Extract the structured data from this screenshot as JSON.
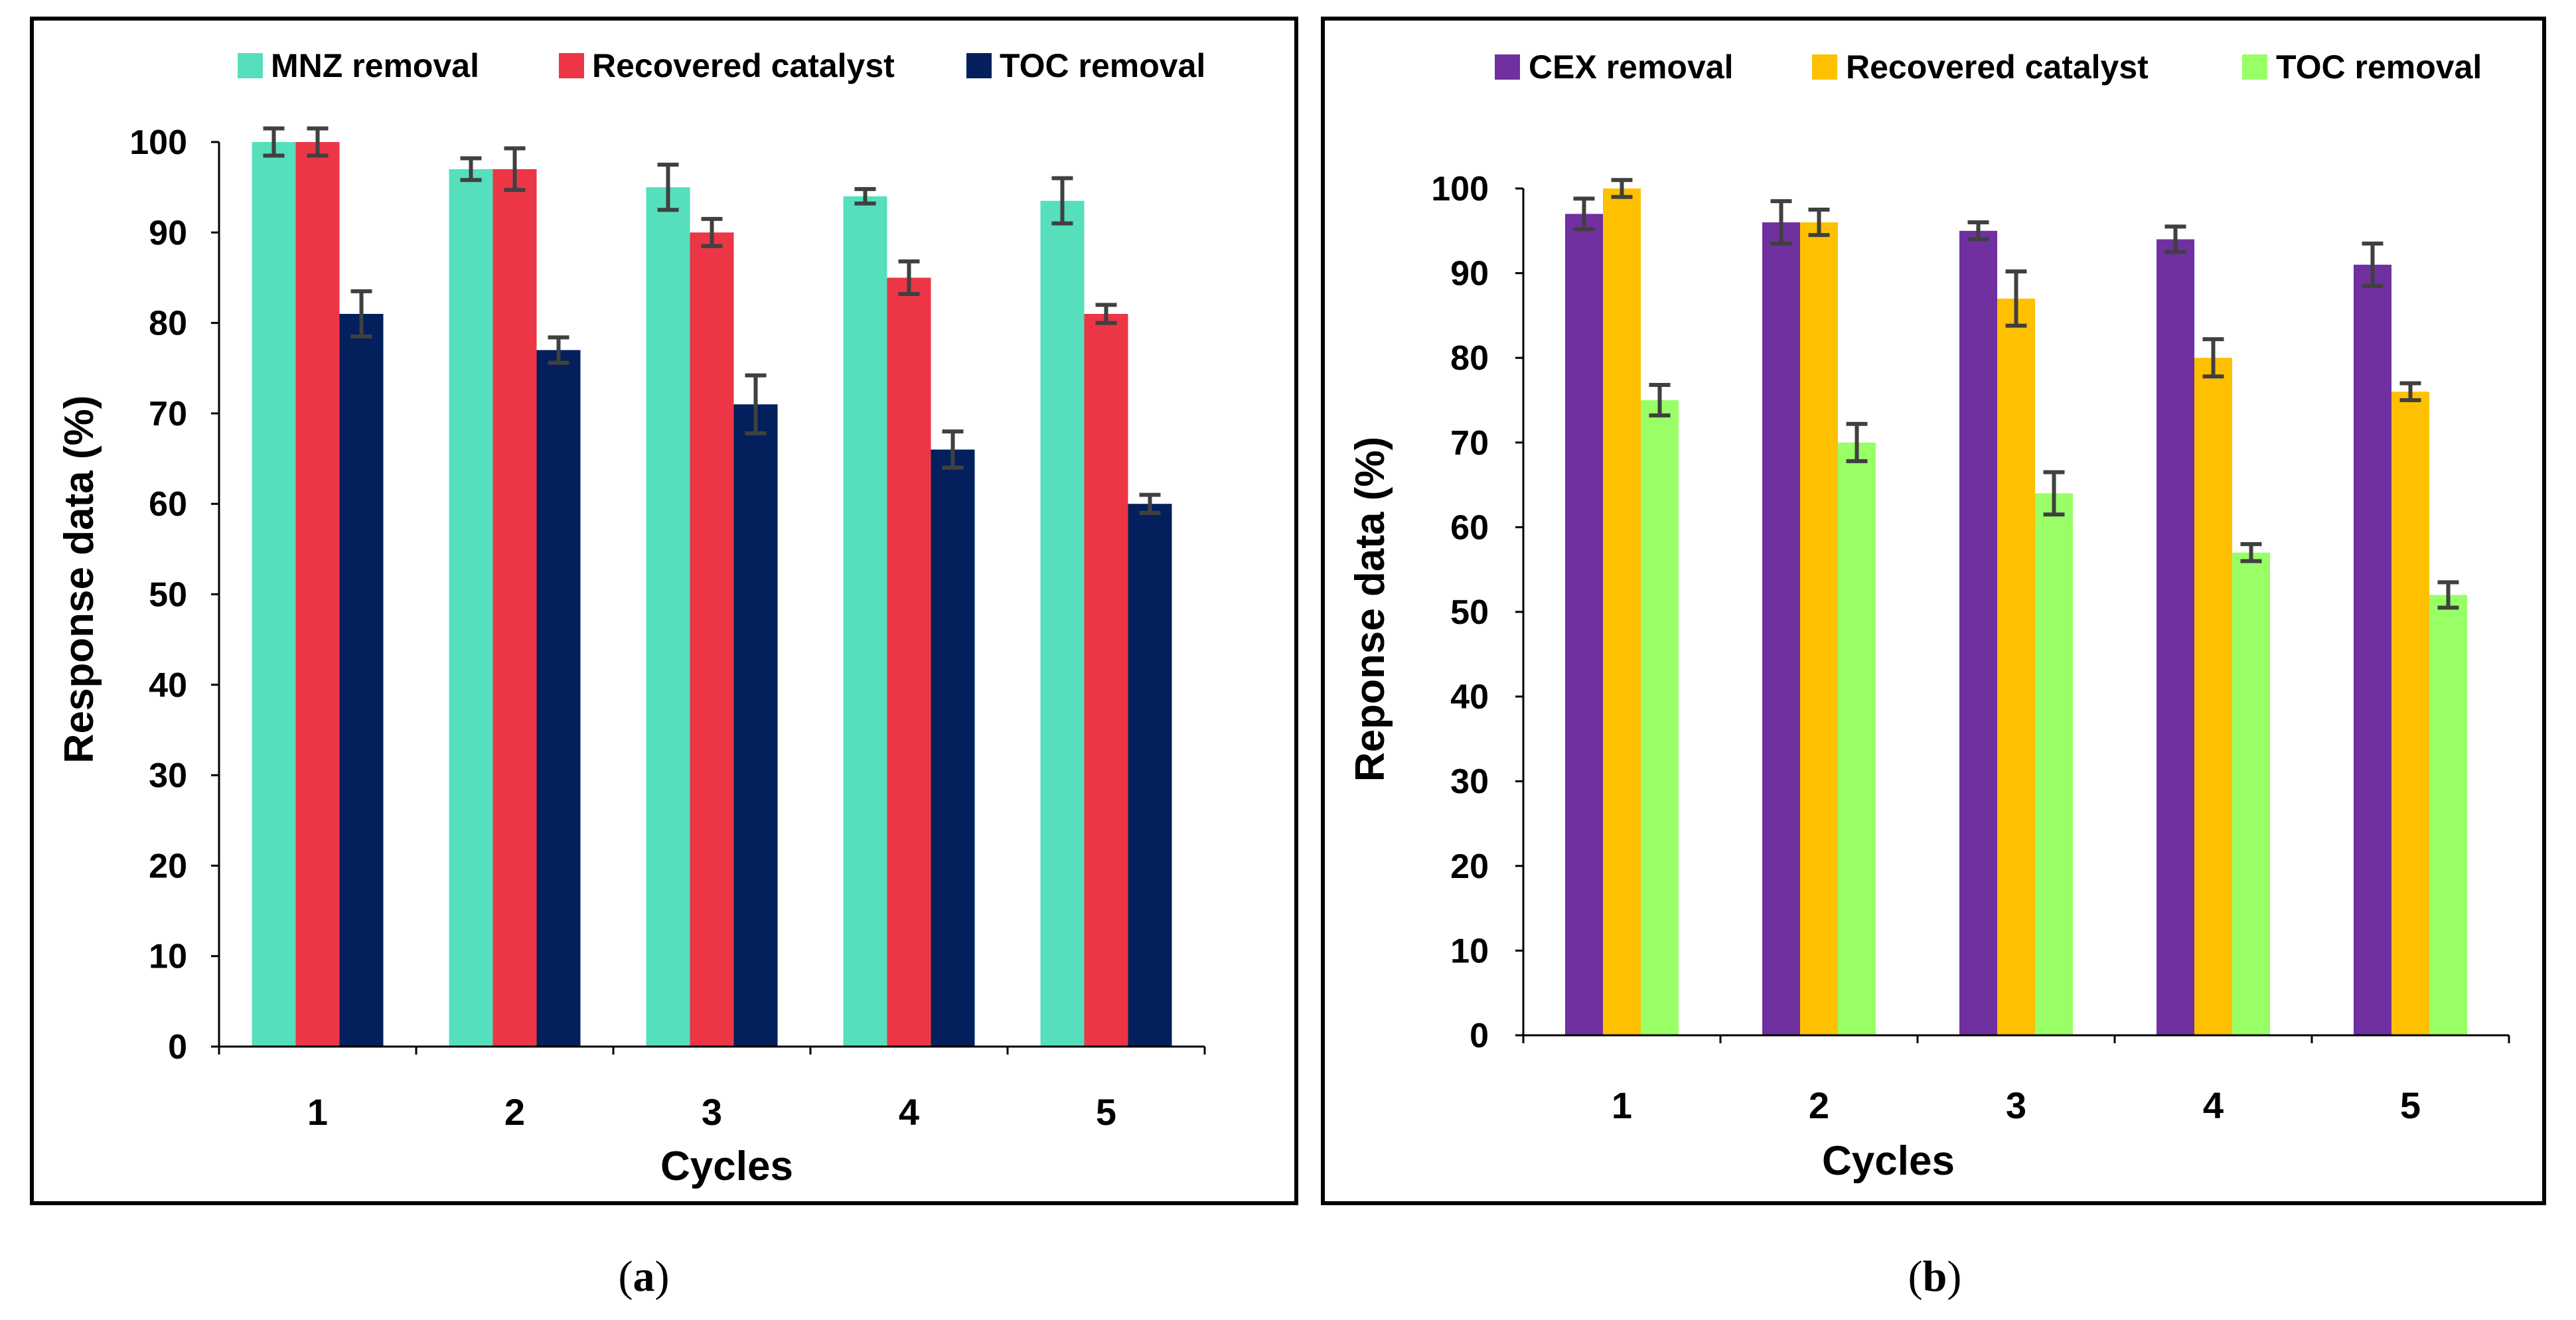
{
  "chart_data": [
    {
      "type": "bar",
      "caption": "a",
      "title": "",
      "xlabel": "Cycles",
      "ylabel": "Response data (%)",
      "ylim": [
        0,
        100
      ],
      "yticks": [
        "0",
        "10",
        "20",
        "30",
        "40",
        "50",
        "60",
        "70",
        "80",
        "90",
        "100"
      ],
      "grid": false,
      "legend_position": "top",
      "categories": [
        "1",
        "2",
        "3",
        "4",
        "5"
      ],
      "series": [
        {
          "name": "MNZ removal",
          "color": "#55dfbd",
          "values": [
            100,
            97,
            95,
            94,
            93.5
          ],
          "errors": [
            1.5,
            1.2,
            2.5,
            0.8,
            2.5
          ]
        },
        {
          "name": "Recovered catalyst",
          "color": "#ec3646",
          "values": [
            100,
            97,
            90,
            85,
            81
          ],
          "errors": [
            1.5,
            2.3,
            1.5,
            1.8,
            1.0
          ]
        },
        {
          "name": "TOC removal",
          "color": "#04205c",
          "values": [
            81,
            77,
            71,
            66,
            60
          ],
          "errors": [
            2.5,
            1.4,
            3.2,
            2.0,
            1.0
          ]
        }
      ]
    },
    {
      "type": "bar",
      "caption": "b",
      "title": "",
      "xlabel": "Cycles",
      "ylabel": "Reponse data  (%)",
      "ylim": [
        0,
        100
      ],
      "yticks": [
        "0",
        "10",
        "20",
        "30",
        "40",
        "50",
        "60",
        "70",
        "80",
        "90",
        "100"
      ],
      "grid": false,
      "legend_position": "top",
      "categories": [
        "1",
        "2",
        "3",
        "4",
        "5"
      ],
      "series": [
        {
          "name": "CEX removal",
          "color": "#7030a0",
          "values": [
            97,
            96,
            95,
            94,
            91
          ],
          "errors": [
            1.8,
            2.5,
            1.0,
            1.5,
            2.5
          ]
        },
        {
          "name": "Recovered catalyst",
          "color": "#ffc000",
          "values": [
            100,
            96,
            87,
            80,
            76
          ],
          "errors": [
            1.0,
            1.5,
            3.2,
            2.2,
            1.0
          ]
        },
        {
          "name": "TOC removal",
          "color": "#99ff66",
          "values": [
            75,
            70,
            64,
            57,
            52
          ],
          "errors": [
            1.8,
            2.2,
            2.5,
            1.0,
            1.5
          ]
        }
      ]
    }
  ]
}
